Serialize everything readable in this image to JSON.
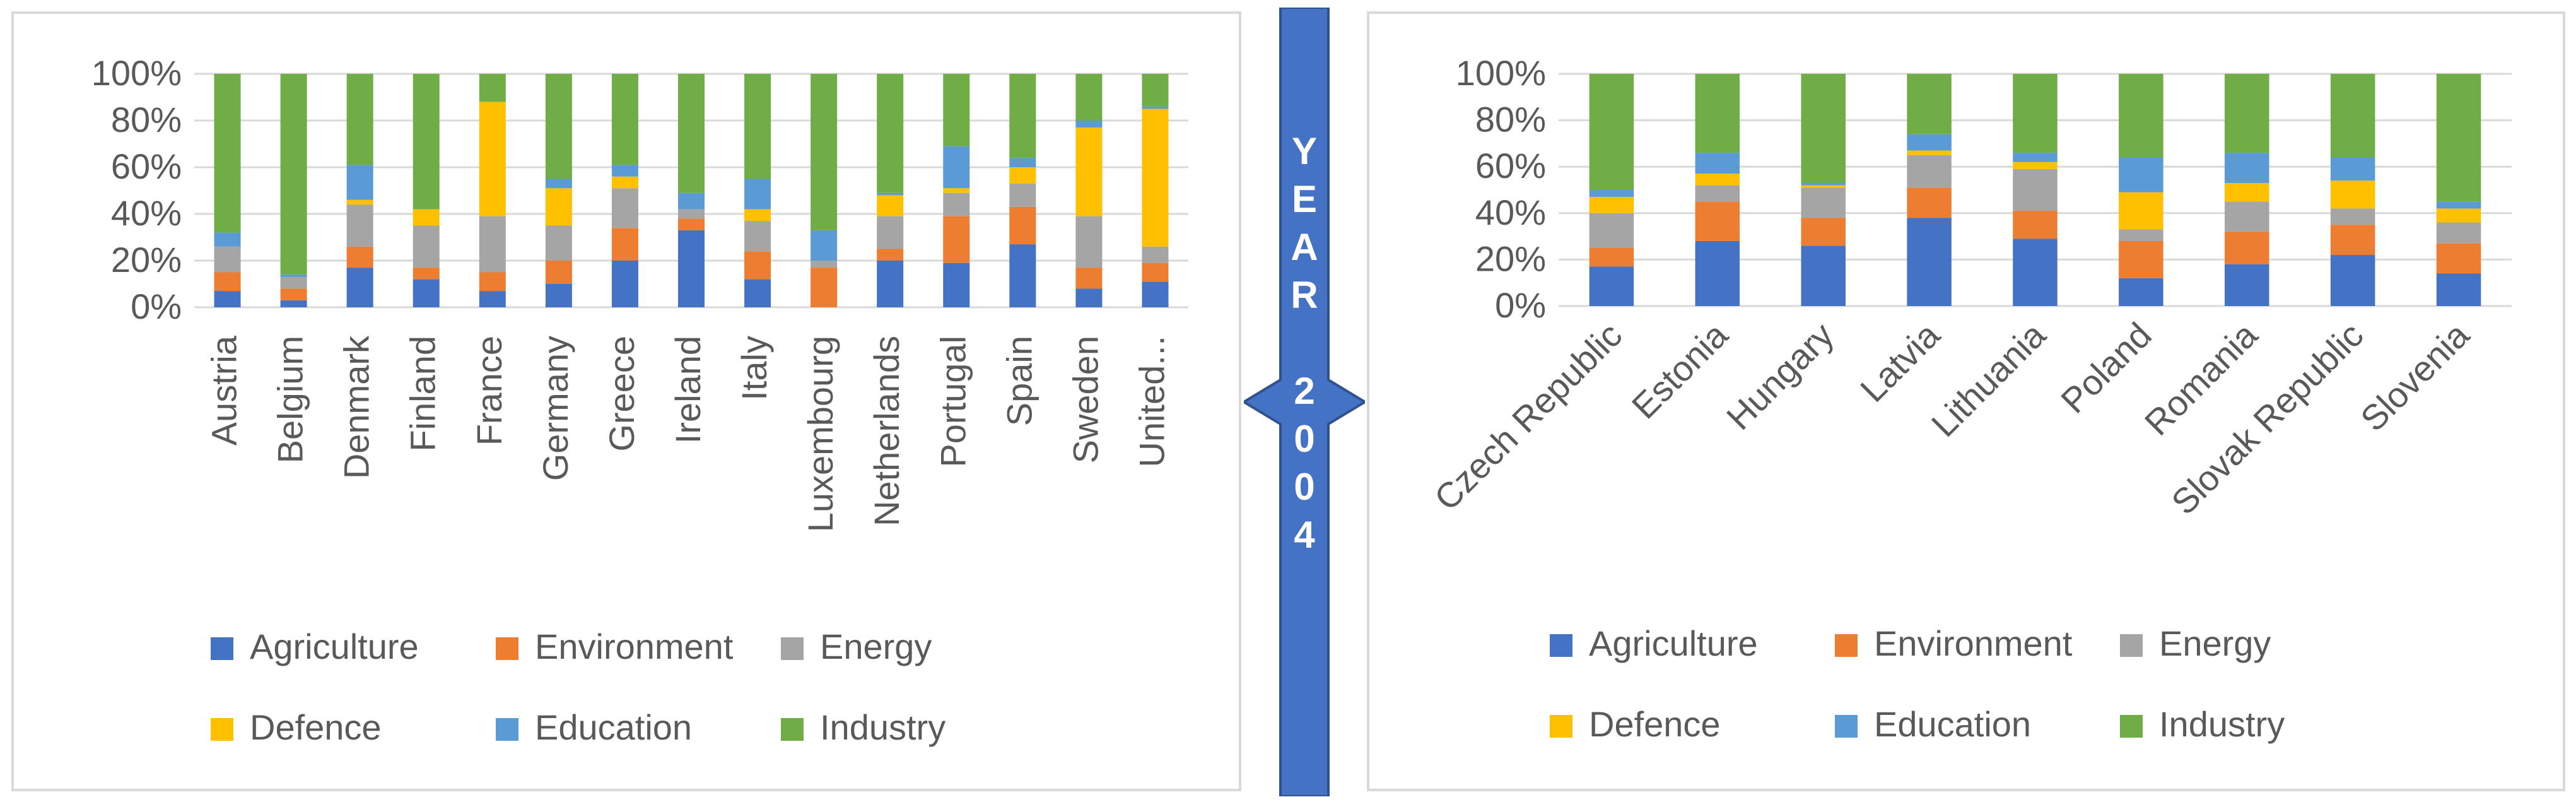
{
  "chart_data": [
    {
      "type": "bar",
      "stacked": true,
      "percent": true,
      "categories": [
        "Austria",
        "Belgium",
        "Denmark",
        "Finland",
        "France",
        "Germany",
        "Greece",
        "Ireland",
        "Italy",
        "Luxembourg",
        "Netherlands",
        "Portugal",
        "Spain",
        "Sweden",
        "United..."
      ],
      "series": [
        {
          "name": "Agriculture",
          "values": [
            7,
            3,
            17,
            12,
            7,
            10,
            20,
            33,
            12,
            0,
            20,
            19,
            27,
            8,
            11
          ]
        },
        {
          "name": "Environment",
          "values": [
            8,
            5,
            9,
            5,
            8,
            10,
            14,
            5,
            12,
            17,
            5,
            20,
            16,
            9,
            8
          ]
        },
        {
          "name": "Energy",
          "values": [
            11,
            5,
            18,
            18,
            24,
            15,
            17,
            4,
            13,
            3,
            14,
            10,
            10,
            22,
            7
          ]
        },
        {
          "name": "Defence",
          "values": [
            0,
            0,
            2,
            7,
            49,
            16,
            5,
            0,
            5,
            0,
            9,
            2,
            7,
            38,
            59
          ]
        },
        {
          "name": "Education",
          "values": [
            6,
            1,
            15,
            0,
            0,
            4,
            5,
            7,
            13,
            13,
            1,
            18,
            4,
            3,
            1
          ]
        },
        {
          "name": "Industry",
          "values": [
            68,
            86,
            39,
            58,
            12,
            45,
            39,
            51,
            45,
            67,
            51,
            31,
            36,
            20,
            14
          ]
        }
      ],
      "ylim": [
        0,
        100
      ],
      "yticks": [
        "0%",
        "20%",
        "40%",
        "60%",
        "80%",
        "100%"
      ],
      "legend": "bottom"
    },
    {
      "type": "bar",
      "stacked": true,
      "percent": true,
      "categories": [
        "Czech Republic",
        "Estonia",
        "Hungary",
        "Latvia",
        "Lithuania",
        "Poland",
        "Romania",
        "Slovak Republic",
        "Slovenia"
      ],
      "series": [
        {
          "name": "Agriculture",
          "values": [
            17,
            28,
            26,
            38,
            29,
            12,
            18,
            22,
            14
          ]
        },
        {
          "name": "Environment",
          "values": [
            8,
            17,
            12,
            13,
            12,
            16,
            14,
            13,
            13
          ]
        },
        {
          "name": "Energy",
          "values": [
            15,
            7,
            13,
            14,
            18,
            5,
            13,
            7,
            9
          ]
        },
        {
          "name": "Defence",
          "values": [
            7,
            5,
            1,
            2,
            3,
            16,
            8,
            12,
            6
          ]
        },
        {
          "name": "Education",
          "values": [
            3,
            9,
            1,
            7,
            4,
            15,
            13,
            10,
            3
          ]
        },
        {
          "name": "Industry",
          "values": [
            50,
            34,
            47,
            26,
            34,
            36,
            34,
            36,
            55
          ]
        }
      ],
      "ylim": [
        0,
        100
      ],
      "yticks": [
        "0%",
        "20%",
        "40%",
        "60%",
        "80%",
        "100%"
      ],
      "legend": "bottom"
    }
  ],
  "colors": {
    "Agriculture": "#4472c4",
    "Environment": "#ed7d31",
    "Energy": "#a5a5a5",
    "Defence": "#ffc000",
    "Education": "#5b9bd5",
    "Industry": "#70ad47",
    "divider": "#4472c4"
  },
  "divider_label": [
    "Y",
    "E",
    "A",
    "R",
    "",
    "2",
    "0",
    "0",
    "4"
  ]
}
